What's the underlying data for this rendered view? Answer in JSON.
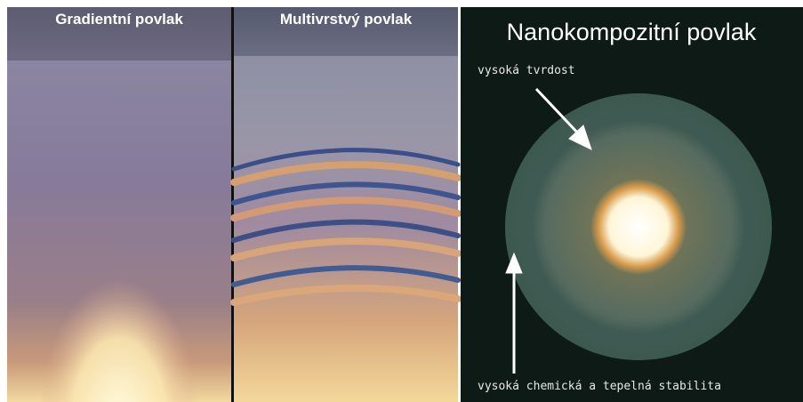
{
  "panels": [
    {
      "title": "Gradientní povlak"
    },
    {
      "title": "Multivrstvý povlak"
    },
    {
      "title": "Nanokompozitní povlak",
      "annotations": [
        "vysoká tvrdost",
        "vysoká chemická a tepelná stabilita"
      ]
    }
  ]
}
